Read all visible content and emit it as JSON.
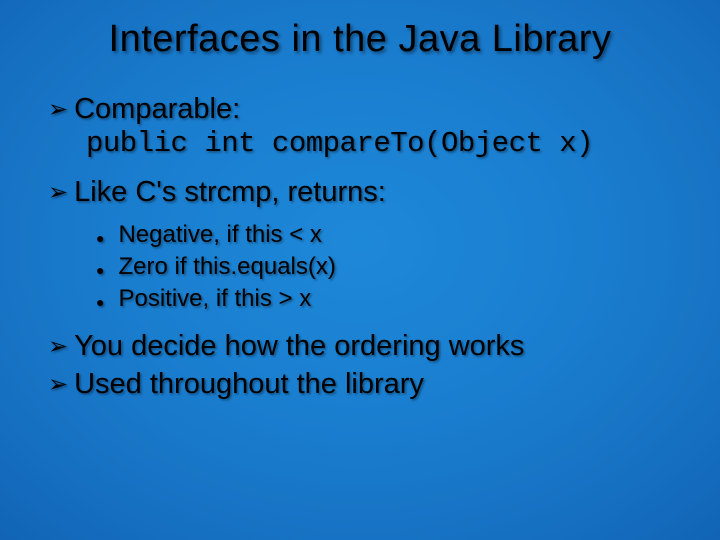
{
  "title": "Interfaces in the Java Library",
  "bullets": {
    "b1_label": "Comparable:",
    "b1_code": "public int compareTo(Object x)",
    "b2": "Like C's strcmp, returns:",
    "b2_sub1": "Negative, if this < x",
    "b2_sub2": "Zero if this.equals(x)",
    "b2_sub3": "Positive, if this > x",
    "b3": "You decide how the ordering works",
    "b4": "Used throughout the library"
  },
  "glyphs": {
    "arrow": "➢",
    "dot": "●"
  },
  "style": {
    "bg_center": "#1e88d8",
    "bg_edge": "#053a7f",
    "text_color": "#000000",
    "title_fontsize": 38,
    "lvl1_fontsize": 29,
    "lvl2_fontsize": 24,
    "code_font": "Courier New"
  }
}
